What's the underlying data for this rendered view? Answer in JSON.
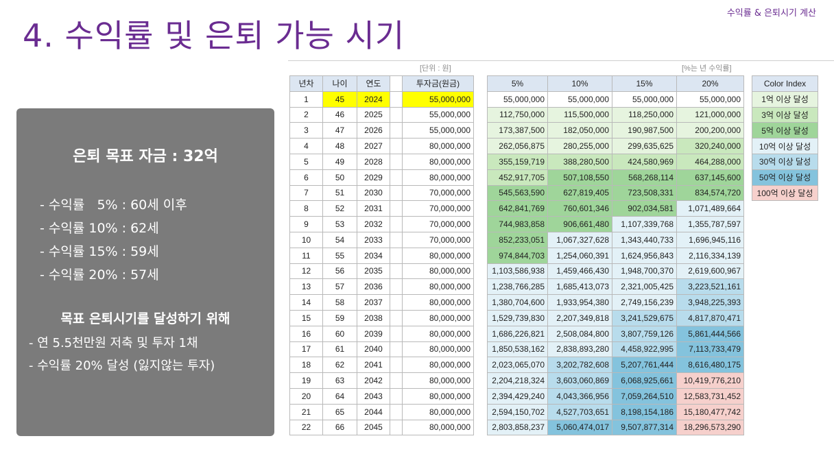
{
  "header": {
    "corner_label": "수익률 & 은퇴시기 계산",
    "title": "4. 수익률 및 은퇴 가능 시기"
  },
  "panel": {
    "heading": "은퇴 목표 자금 : 32억",
    "rates": [
      "- 수익률   5% : 60세 이후",
      "- 수익률 10% : 62세",
      "- 수익률 15% : 59세",
      "- 수익률 20% : 57세"
    ],
    "subheading": "목표 은퇴시기를 달성하기 위해",
    "plans": [
      "- 연 5.5천만원 저축 및 투자 1채",
      "- 수익률 20% 달성 (잃지않는 투자)"
    ]
  },
  "sheet": {
    "unit_left": "[단위 : 원]",
    "unit_right": "[%는 년 수익률]",
    "left_headers": [
      "년차",
      "나이",
      "연도",
      "",
      "투자금(원금)"
    ],
    "right_headers": [
      "5%",
      "10%",
      "15%",
      "20%"
    ],
    "legend_header": "Color Index",
    "legend": [
      {
        "label": "1억 이상 달성",
        "color": "#e6f4df"
      },
      {
        "label": "3억 이상 달성",
        "color": "#c9e8bd"
      },
      {
        "label": "5억 이상 달성",
        "color": "#9fd59a"
      },
      {
        "label": "10억 이상 달성",
        "color": "#e3f1f7"
      },
      {
        "label": "30억 이상 달성",
        "color": "#b8dcec"
      },
      {
        "label": "50억 이상 달성",
        "color": "#84c3dd"
      },
      {
        "label": "100억 이상 달성",
        "color": "#f6d0cc"
      }
    ],
    "rows": [
      {
        "year": "1",
        "age": "45",
        "yr": "2024",
        "principal": "55,000,000",
        "v": [
          "55,000,000",
          "55,000,000",
          "55,000,000",
          "55,000,000"
        ]
      },
      {
        "year": "2",
        "age": "46",
        "yr": "2025",
        "principal": "55,000,000",
        "v": [
          "112,750,000",
          "115,500,000",
          "118,250,000",
          "121,000,000"
        ]
      },
      {
        "year": "3",
        "age": "47",
        "yr": "2026",
        "principal": "55,000,000",
        "v": [
          "173,387,500",
          "182,050,000",
          "190,987,500",
          "200,200,000"
        ]
      },
      {
        "year": "4",
        "age": "48",
        "yr": "2027",
        "principal": "80,000,000",
        "v": [
          "262,056,875",
          "280,255,000",
          "299,635,625",
          "320,240,000"
        ]
      },
      {
        "year": "5",
        "age": "49",
        "yr": "2028",
        "principal": "80,000,000",
        "v": [
          "355,159,719",
          "388,280,500",
          "424,580,969",
          "464,288,000"
        ]
      },
      {
        "year": "6",
        "age": "50",
        "yr": "2029",
        "principal": "80,000,000",
        "v": [
          "452,917,705",
          "507,108,550",
          "568,268,114",
          "637,145,600"
        ]
      },
      {
        "year": "7",
        "age": "51",
        "yr": "2030",
        "principal": "70,000,000",
        "v": [
          "545,563,590",
          "627,819,405",
          "723,508,331",
          "834,574,720"
        ]
      },
      {
        "year": "8",
        "age": "52",
        "yr": "2031",
        "principal": "70,000,000",
        "v": [
          "642,841,769",
          "760,601,346",
          "902,034,581",
          "1,071,489,664"
        ]
      },
      {
        "year": "9",
        "age": "53",
        "yr": "2032",
        "principal": "70,000,000",
        "v": [
          "744,983,858",
          "906,661,480",
          "1,107,339,768",
          "1,355,787,597"
        ]
      },
      {
        "year": "10",
        "age": "54",
        "yr": "2033",
        "principal": "70,000,000",
        "v": [
          "852,233,051",
          "1,067,327,628",
          "1,343,440,733",
          "1,696,945,116"
        ]
      },
      {
        "year": "11",
        "age": "55",
        "yr": "2034",
        "principal": "80,000,000",
        "v": [
          "974,844,703",
          "1,254,060,391",
          "1,624,956,843",
          "2,116,334,139"
        ]
      },
      {
        "year": "12",
        "age": "56",
        "yr": "2035",
        "principal": "80,000,000",
        "v": [
          "1,103,586,938",
          "1,459,466,430",
          "1,948,700,370",
          "2,619,600,967"
        ]
      },
      {
        "year": "13",
        "age": "57",
        "yr": "2036",
        "principal": "80,000,000",
        "v": [
          "1,238,766,285",
          "1,685,413,073",
          "2,321,005,425",
          "3,223,521,161"
        ]
      },
      {
        "year": "14",
        "age": "58",
        "yr": "2037",
        "principal": "80,000,000",
        "v": [
          "1,380,704,600",
          "1,933,954,380",
          "2,749,156,239",
          "3,948,225,393"
        ]
      },
      {
        "year": "15",
        "age": "59",
        "yr": "2038",
        "principal": "80,000,000",
        "v": [
          "1,529,739,830",
          "2,207,349,818",
          "3,241,529,675",
          "4,817,870,471"
        ]
      },
      {
        "year": "16",
        "age": "60",
        "yr": "2039",
        "principal": "80,000,000",
        "v": [
          "1,686,226,821",
          "2,508,084,800",
          "3,807,759,126",
          "5,861,444,566"
        ]
      },
      {
        "year": "17",
        "age": "61",
        "yr": "2040",
        "principal": "80,000,000",
        "v": [
          "1,850,538,162",
          "2,838,893,280",
          "4,458,922,995",
          "7,113,733,479"
        ]
      },
      {
        "year": "18",
        "age": "62",
        "yr": "2041",
        "principal": "80,000,000",
        "v": [
          "2,023,065,070",
          "3,202,782,608",
          "5,207,761,444",
          "8,616,480,175"
        ]
      },
      {
        "year": "19",
        "age": "63",
        "yr": "2042",
        "principal": "80,000,000",
        "v": [
          "2,204,218,324",
          "3,603,060,869",
          "6,068,925,661",
          "10,419,776,210"
        ]
      },
      {
        "year": "20",
        "age": "64",
        "yr": "2043",
        "principal": "80,000,000",
        "v": [
          "2,394,429,240",
          "4,043,366,956",
          "7,059,264,510",
          "12,583,731,452"
        ]
      },
      {
        "year": "21",
        "age": "65",
        "yr": "2044",
        "principal": "80,000,000",
        "v": [
          "2,594,150,702",
          "4,527,703,651",
          "8,198,154,186",
          "15,180,477,742"
        ]
      },
      {
        "year": "22",
        "age": "66",
        "yr": "2045",
        "principal": "80,000,000",
        "v": [
          "2,803,858,237",
          "5,060,474,017",
          "9,507,877,314",
          "18,296,573,290"
        ]
      }
    ]
  }
}
